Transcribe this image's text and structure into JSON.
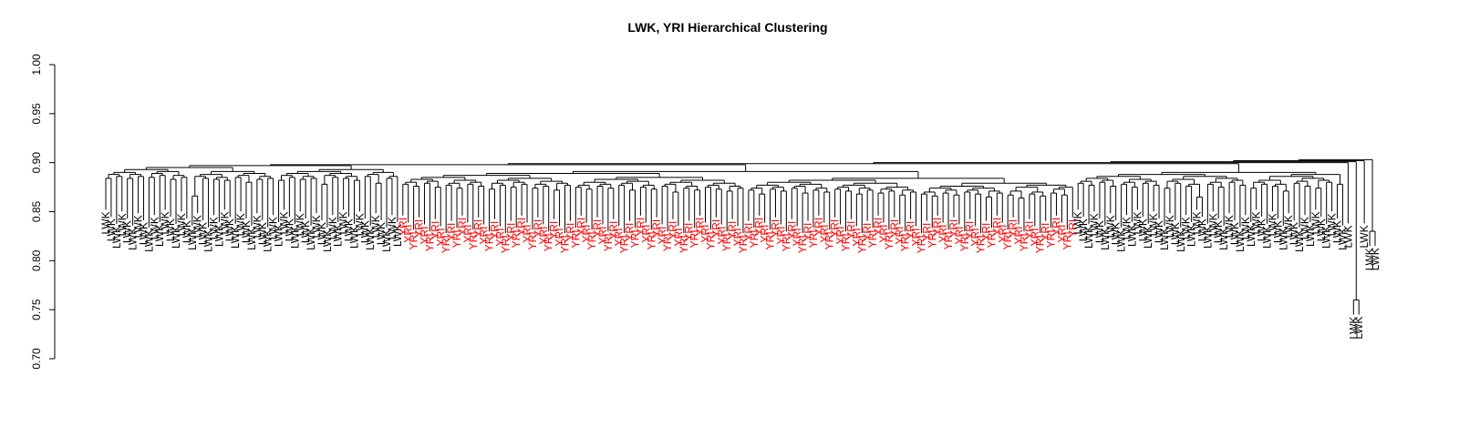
{
  "chart_data": {
    "type": "dendrogram",
    "title": "LWK, YRI Hierarchical Clustering",
    "xlabel": "",
    "ylabel": "",
    "ylim": [
      0.7,
      1.0
    ],
    "yticks": [
      "0.70",
      "0.75",
      "0.80",
      "0.85",
      "0.90",
      "0.95",
      "1.00"
    ],
    "grid": false,
    "legend": "none",
    "colors": {
      "LWK": "#000000",
      "YRI": "#ff0000"
    },
    "groups": [
      {
        "label": "LWK",
        "count": 55,
        "merge_heights": [
          0.884,
          0.886,
          0.884,
          0.886,
          0.885,
          0.887,
          0.883,
          0.885,
          0.866,
          0.884,
          0.883,
          0.882,
          0.885,
          0.88,
          0.883,
          0.884,
          0.882,
          0.885,
          0.883,
          0.884,
          0.878,
          0.885,
          0.884,
          0.882,
          0.886,
          0.879,
          0.884,
          0.883,
          0.881,
          0.884,
          0.882,
          0.878,
          0.883,
          0.881,
          0.883,
          0.879,
          0.882,
          0.884,
          0.88,
          0.883,
          0.881,
          0.878,
          0.882,
          0.88,
          0.877,
          0.865,
          0.881,
          0.879,
          0.872,
          0.88,
          0.878,
          0.876,
          0.879,
          0.877,
          0.875
        ]
      },
      {
        "label": "YRI",
        "count": 125,
        "merge_heights": [
          0.878,
          0.876,
          0.879,
          0.875,
          0.877,
          0.874,
          0.878,
          0.876,
          0.873,
          0.877,
          0.875,
          0.878,
          0.874,
          0.876,
          0.872,
          0.877,
          0.875,
          0.873,
          0.876,
          0.874,
          0.877,
          0.872,
          0.875,
          0.873,
          0.876,
          0.87,
          0.874,
          0.872,
          0.875,
          0.873,
          0.871,
          0.874,
          0.872,
          0.868,
          0.873,
          0.871,
          0.874,
          0.869,
          0.872,
          0.87,
          0.873,
          0.871,
          0.868,
          0.872,
          0.869,
          0.871,
          0.867,
          0.87,
          0.868,
          0.866,
          0.869,
          0.867,
          0.87,
          0.868,
          0.865,
          0.869,
          0.867,
          0.864,
          0.868,
          0.866,
          0.869,
          0.867,
          0.865,
          0.868,
          0.866,
          0.87,
          0.867,
          0.865,
          0.868,
          0.866,
          0.869,
          0.867,
          0.87,
          0.868,
          0.866,
          0.869,
          0.867,
          0.871,
          0.869,
          0.867,
          0.87,
          0.868,
          0.872,
          0.87,
          0.868,
          0.871,
          0.869,
          0.872,
          0.87,
          0.868,
          0.871,
          0.869,
          0.873,
          0.871,
          0.869,
          0.872,
          0.87,
          0.874,
          0.872,
          0.87,
          0.873,
          0.871,
          0.875,
          0.873,
          0.871,
          0.874,
          0.872,
          0.875,
          0.873,
          0.871,
          0.874,
          0.872,
          0.876,
          0.874,
          0.872,
          0.875,
          0.873,
          0.876,
          0.874,
          0.877,
          0.875,
          0.873,
          0.876,
          0.874,
          0.866
        ]
      },
      {
        "label": "LWK",
        "count": 50,
        "merge_heights": [
          0.879,
          0.877,
          0.88,
          0.876,
          0.878,
          0.875,
          0.879,
          0.877,
          0.874,
          0.879,
          0.876,
          0.865,
          0.878,
          0.875,
          0.88,
          0.877,
          0.874,
          0.878,
          0.876,
          0.871,
          0.879,
          0.876,
          0.874,
          0.88,
          0.878,
          0.858,
          0.881,
          0.867,
          0.876,
          0.878,
          0.87,
          0.879,
          0.857,
          0.876,
          0.861,
          0.874,
          0.879,
          0.852,
          0.878,
          0.876,
          0.858,
          0.88,
          0.879,
          0.876,
          0.874,
          0.882,
          0.879,
          0.877,
          0.876,
          0.88
        ]
      },
      {
        "label": "LWK",
        "count": 1,
        "merge_heights": []
      },
      {
        "label": "LWK",
        "count": 2,
        "merge_heights": [
          0.76
        ]
      },
      {
        "label": "LWK",
        "count": 1,
        "merge_heights": []
      },
      {
        "label": "LWK",
        "count": 2,
        "merge_heights": [
          0.83
        ]
      }
    ],
    "top_merge_heights": [
      0.883,
      0.885,
      0.886,
      0.887,
      0.889
    ]
  }
}
